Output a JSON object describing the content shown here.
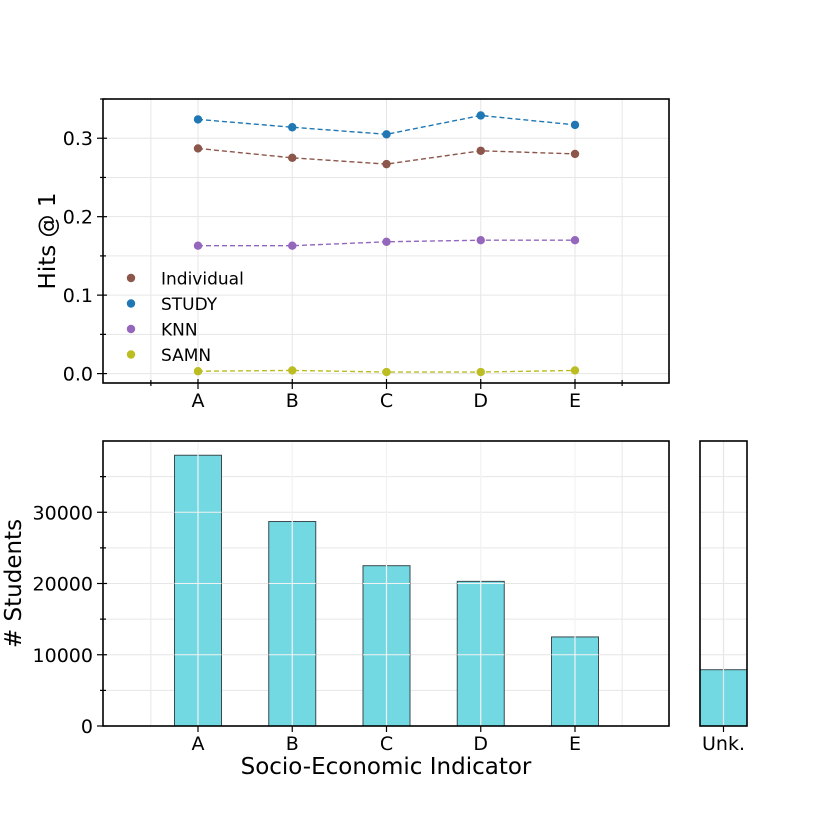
{
  "chart_data": [
    {
      "type": "line",
      "ylabel": "Hits @ 1",
      "categories": [
        "A",
        "B",
        "C",
        "D",
        "E"
      ],
      "ylim": [
        -0.012,
        0.35
      ],
      "yticks": [
        "0.0",
        "0.1",
        "0.2",
        "0.3"
      ],
      "ytick_values": [
        0.0,
        0.1,
        0.2,
        0.3
      ],
      "grid": true,
      "line_style": "dashed",
      "legend_position": "lower-left",
      "series": [
        {
          "name": "Individual",
          "color": "#8c564b",
          "values": [
            0.287,
            0.275,
            0.267,
            0.284,
            0.28
          ]
        },
        {
          "name": "STUDY",
          "color": "#1f77b4",
          "values": [
            0.324,
            0.314,
            0.305,
            0.329,
            0.317
          ]
        },
        {
          "name": "KNN",
          "color": "#9467bd",
          "values": [
            0.163,
            0.163,
            0.168,
            0.17,
            0.17
          ]
        },
        {
          "name": "SAMN",
          "color": "#bcbd22",
          "values": [
            0.003,
            0.004,
            0.002,
            0.002,
            0.004
          ]
        }
      ]
    },
    {
      "type": "bar",
      "ylabel": "# Students",
      "xlabel": "Socio-Economic Indicator",
      "categories": [
        "A",
        "B",
        "C",
        "D",
        "E"
      ],
      "values": [
        38000,
        28700,
        22500,
        20300,
        12500
      ],
      "ylim": [
        0,
        40000
      ],
      "yticks": [
        "0",
        "10000",
        "20000",
        "30000"
      ],
      "ytick_values": [
        0,
        10000,
        20000,
        30000
      ],
      "bar_color": "#72d9e3",
      "edge_color": "#3a4a4f",
      "grid": true
    },
    {
      "type": "bar",
      "categories": [
        "Unk."
      ],
      "values": [
        7900
      ],
      "ylim": [
        0,
        40000
      ],
      "bar_color": "#72d9e3",
      "edge_color": "#3a4a4f",
      "grid": true
    }
  ]
}
